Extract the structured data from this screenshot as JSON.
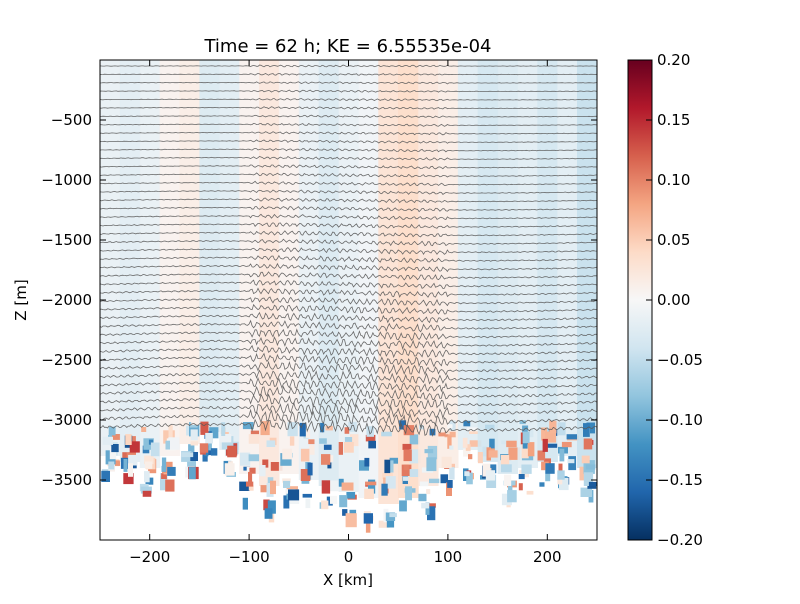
{
  "chart_data": {
    "type": "heatmap",
    "title": "Time = 62 h; KE = 6.55535e-04",
    "xlabel": "X [km]",
    "ylabel": "Z [m]",
    "xlim": [
      -250,
      250
    ],
    "ylim": [
      -4000,
      0
    ],
    "x_ticks": [
      {
        "value": -200,
        "label": "−200"
      },
      {
        "value": -100,
        "label": "−100"
      },
      {
        "value": 0,
        "label": "0"
      },
      {
        "value": 100,
        "label": "100"
      },
      {
        "value": 200,
        "label": "200"
      }
    ],
    "y_ticks": [
      {
        "value": -500,
        "label": "−500"
      },
      {
        "value": -1000,
        "label": "−1000"
      },
      {
        "value": -1500,
        "label": "−1500"
      },
      {
        "value": -2000,
        "label": "−2000"
      },
      {
        "value": -2500,
        "label": "−2500"
      },
      {
        "value": -3000,
        "label": "−3000"
      },
      {
        "value": -3500,
        "label": "−3500"
      }
    ],
    "colorbar": {
      "range": [
        -0.2,
        0.2
      ],
      "ticks": [
        {
          "value": 0.2,
          "label": "0.20"
        },
        {
          "value": 0.15,
          "label": "0.15"
        },
        {
          "value": 0.1,
          "label": "0.10"
        },
        {
          "value": 0.05,
          "label": "0.05"
        },
        {
          "value": 0.0,
          "label": "0.00"
        },
        {
          "value": -0.05,
          "label": "−0.05"
        },
        {
          "value": -0.1,
          "label": "−0.10"
        },
        {
          "value": -0.15,
          "label": "−0.15"
        },
        {
          "value": -0.2,
          "label": "−0.20"
        }
      ],
      "colormap": "RdBu_r",
      "colors": [
        "#053061",
        "#2166ac",
        "#4393c3",
        "#92c5de",
        "#d1e5f0",
        "#f7f7f7",
        "#fddbc7",
        "#f4a582",
        "#d6604d",
        "#b2182b",
        "#67001f"
      ]
    },
    "field_columns": [
      {
        "x": -250,
        "v": -0.02,
        "bottom": -3300
      },
      {
        "x": -230,
        "v": -0.03,
        "bottom": -3350
      },
      {
        "x": -210,
        "v": -0.02,
        "bottom": -3400
      },
      {
        "x": -190,
        "v": 0.01,
        "bottom": -3300
      },
      {
        "x": -170,
        "v": 0.02,
        "bottom": -3200
      },
      {
        "x": -150,
        "v": -0.04,
        "bottom": -3100
      },
      {
        "x": -130,
        "v": -0.03,
        "bottom": -3250
      },
      {
        "x": -110,
        "v": 0.01,
        "bottom": -3450
      },
      {
        "x": -90,
        "v": 0.03,
        "bottom": -3550
      },
      {
        "x": -70,
        "v": 0.01,
        "bottom": -3450
      },
      {
        "x": -50,
        "v": -0.02,
        "bottom": -3500
      },
      {
        "x": -30,
        "v": -0.04,
        "bottom": -3550
      },
      {
        "x": -10,
        "v": -0.02,
        "bottom": -3600
      },
      {
        "x": 10,
        "v": -0.01,
        "bottom": -3650
      },
      {
        "x": 30,
        "v": 0.04,
        "bottom": -3700
      },
      {
        "x": 50,
        "v": 0.05,
        "bottom": -3650
      },
      {
        "x": 70,
        "v": 0.03,
        "bottom": -3550
      },
      {
        "x": 90,
        "v": 0.02,
        "bottom": -3400
      },
      {
        "x": 110,
        "v": -0.03,
        "bottom": -3250
      },
      {
        "x": 130,
        "v": -0.05,
        "bottom": -3350
      },
      {
        "x": 150,
        "v": -0.04,
        "bottom": -3450
      },
      {
        "x": 170,
        "v": -0.03,
        "bottom": -3400
      },
      {
        "x": 190,
        "v": -0.05,
        "bottom": -3350
      },
      {
        "x": 210,
        "v": -0.03,
        "bottom": -3300
      },
      {
        "x": 230,
        "v": -0.06,
        "bottom": -3400
      }
    ],
    "contours": {
      "count": 44,
      "top": -50,
      "spacing": 70,
      "color": "#5a5a5a"
    }
  }
}
